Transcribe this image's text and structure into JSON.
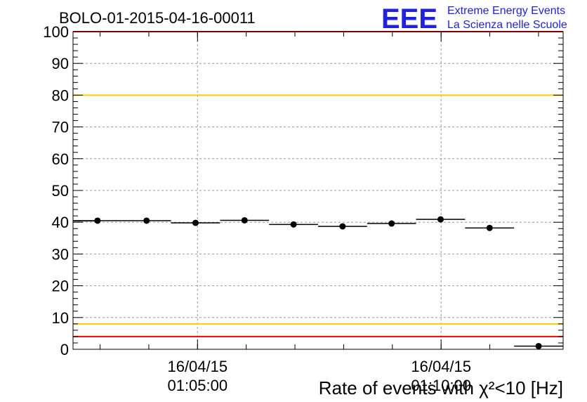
{
  "chart_data": {
    "type": "scatter",
    "title": "BOLO-01-2015-04-16-00011",
    "xlabel": "Rate of events with χ²<10 [Hz]",
    "ylabel": "",
    "xlim": [
      0,
      100
    ],
    "ylim": [
      0,
      100
    ],
    "x_unit_note": "x values are positions along the time axis in plotted bins",
    "yticks": [
      0,
      10,
      20,
      30,
      40,
      50,
      60,
      70,
      80,
      90,
      100
    ],
    "xticks": [
      {
        "x": 25.4,
        "label_date": "16/04/15",
        "label_time": "01:05:00"
      },
      {
        "x": 75.1,
        "label_date": "16/04/15",
        "label_time": "01:10:00"
      }
    ],
    "grid": true,
    "reference_lines": [
      {
        "y": 100,
        "color": "#ff0000"
      },
      {
        "y": 80,
        "color": "#ffcc00"
      },
      {
        "y": 8,
        "color": "#ffcc00"
      },
      {
        "y": 4,
        "color": "#ff0000"
      }
    ],
    "points": [
      {
        "x_start": 0,
        "x_end": 5,
        "y": 40.4,
        "marker": false
      },
      {
        "x_start": 0,
        "x_end": 10,
        "y": 40.5,
        "marker": true
      },
      {
        "x_start": 10,
        "x_end": 20,
        "y": 40.5,
        "marker": true
      },
      {
        "x_start": 20,
        "x_end": 30,
        "y": 39.8,
        "marker": true
      },
      {
        "x_start": 30,
        "x_end": 40,
        "y": 40.6,
        "marker": true
      },
      {
        "x_start": 40,
        "x_end": 50,
        "y": 39.3,
        "marker": true
      },
      {
        "x_start": 50,
        "x_end": 60,
        "y": 38.7,
        "marker": true
      },
      {
        "x_start": 60,
        "x_end": 70,
        "y": 39.6,
        "marker": true
      },
      {
        "x_start": 70,
        "x_end": 80,
        "y": 40.9,
        "marker": true
      },
      {
        "x_start": 80,
        "x_end": 90,
        "y": 38.2,
        "marker": true
      },
      {
        "x_start": 90,
        "x_end": 100,
        "y": 1.0,
        "marker": true
      }
    ],
    "colors": {
      "points": "#000000",
      "grid": "#999999",
      "logo": "#2222dd"
    }
  },
  "logo": {
    "mark": "EEE",
    "line1": "Extreme Energy Events",
    "line2": "La Scienza nelle Scuole"
  }
}
